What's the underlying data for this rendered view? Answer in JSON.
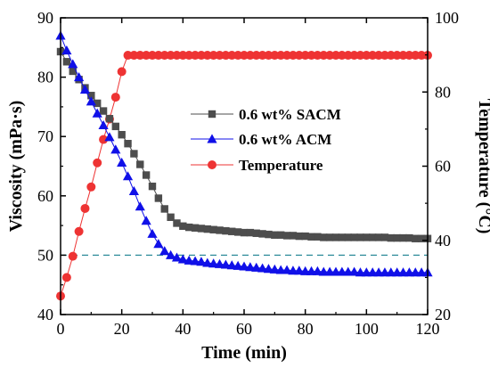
{
  "chart_data": {
    "type": "line",
    "xlabel": "Time (min)",
    "ylabel_left": "Viscosity (mPa·s)",
    "ylabel_right": "Temperature (°C)",
    "xlim": [
      0,
      120
    ],
    "ylim_left": [
      40,
      90
    ],
    "ylim_right": [
      20,
      100
    ],
    "x_ticks": [
      "0",
      "20",
      "40",
      "60",
      "80",
      "100",
      "120"
    ],
    "y_left_ticks": [
      "40",
      "50",
      "60",
      "70",
      "80",
      "90"
    ],
    "y_right_ticks": [
      "20",
      "40",
      "60",
      "80",
      "100"
    ],
    "legend_position": "center-right",
    "grid": false,
    "reference_line": {
      "axis": "left",
      "value": 50,
      "style": "dashed",
      "color": "#2e8b99"
    },
    "series": [
      {
        "name": "0.6 wt% SACM",
        "axis": "left",
        "marker": "square",
        "color": "#4d4d4d",
        "x": [
          0,
          2,
          4,
          6,
          8,
          10,
          12,
          14,
          16,
          18,
          20,
          22,
          24,
          26,
          28,
          30,
          32,
          34,
          36,
          38,
          40,
          42,
          44,
          46,
          48,
          50,
          52,
          54,
          56,
          58,
          60,
          62,
          64,
          66,
          68,
          70,
          72,
          74,
          76,
          78,
          80,
          82,
          84,
          86,
          88,
          90,
          92,
          94,
          96,
          98,
          100,
          102,
          104,
          106,
          108,
          110,
          112,
          114,
          116,
          118,
          120
        ],
        "values": [
          84.3,
          82.6,
          81.0,
          79.6,
          78.2,
          76.9,
          75.6,
          74.3,
          73.0,
          71.7,
          70.3,
          68.8,
          67.1,
          65.3,
          63.5,
          61.6,
          59.6,
          57.8,
          56.4,
          55.4,
          54.9,
          54.7,
          54.6,
          54.5,
          54.4,
          54.3,
          54.2,
          54.1,
          54.0,
          53.9,
          53.8,
          53.8,
          53.7,
          53.6,
          53.5,
          53.4,
          53.4,
          53.3,
          53.3,
          53.2,
          53.2,
          53.1,
          53.1,
          53.0,
          53.0,
          53.0,
          53.0,
          53.0,
          53.0,
          53.0,
          53.0,
          53.0,
          53.0,
          53.0,
          52.9,
          52.9,
          52.9,
          52.9,
          52.8,
          52.8,
          52.8
        ]
      },
      {
        "name": "0.6 wt% ACM",
        "axis": "left",
        "marker": "triangle",
        "color": "#1010e8",
        "x": [
          0,
          2,
          4,
          6,
          8,
          10,
          12,
          14,
          16,
          18,
          20,
          22,
          24,
          26,
          28,
          30,
          32,
          34,
          36,
          38,
          40,
          42,
          44,
          46,
          48,
          50,
          52,
          54,
          56,
          58,
          60,
          62,
          64,
          66,
          68,
          70,
          72,
          74,
          76,
          78,
          80,
          82,
          84,
          86,
          88,
          90,
          92,
          94,
          96,
          98,
          100,
          102,
          104,
          106,
          108,
          110,
          112,
          114,
          116,
          118,
          120
        ],
        "values": [
          87.0,
          84.5,
          82.2,
          80.0,
          77.9,
          75.9,
          73.9,
          71.9,
          69.9,
          67.8,
          65.6,
          63.3,
          60.8,
          58.2,
          55.8,
          53.6,
          51.9,
          50.7,
          50.0,
          49.6,
          49.3,
          49.1,
          49.0,
          48.9,
          48.7,
          48.6,
          48.5,
          48.4,
          48.3,
          48.2,
          48.1,
          48.0,
          47.9,
          47.8,
          47.7,
          47.6,
          47.5,
          47.5,
          47.4,
          47.4,
          47.3,
          47.3,
          47.3,
          47.2,
          47.2,
          47.2,
          47.2,
          47.2,
          47.2,
          47.1,
          47.1,
          47.1,
          47.1,
          47.1,
          47.1,
          47.1,
          47.1,
          47.1,
          47.1,
          47.1,
          47.1
        ]
      },
      {
        "name": "Temperature",
        "axis": "right",
        "marker": "circle",
        "color": "#ee3333",
        "x": [
          0,
          2,
          4,
          6,
          8,
          10,
          12,
          14,
          16,
          18,
          20,
          22,
          24,
          26,
          28,
          30,
          32,
          34,
          36,
          38,
          40,
          42,
          44,
          46,
          48,
          50,
          52,
          54,
          56,
          58,
          60,
          62,
          64,
          66,
          68,
          70,
          72,
          74,
          76,
          78,
          80,
          82,
          84,
          86,
          88,
          90,
          92,
          94,
          96,
          98,
          100,
          102,
          104,
          106,
          108,
          110,
          112,
          114,
          116,
          118,
          120
        ],
        "values": [
          25.0,
          30.0,
          35.7,
          42.4,
          48.6,
          54.4,
          60.9,
          67.2,
          72.7,
          78.6,
          85.5,
          89.9,
          89.9,
          89.9,
          89.9,
          89.9,
          89.9,
          89.9,
          89.9,
          89.9,
          89.9,
          89.9,
          89.9,
          89.9,
          89.9,
          89.9,
          89.9,
          89.9,
          89.9,
          89.9,
          89.9,
          89.9,
          89.9,
          89.9,
          89.9,
          89.9,
          89.9,
          89.9,
          89.9,
          89.9,
          89.9,
          89.9,
          89.9,
          89.9,
          89.9,
          89.9,
          89.9,
          89.9,
          89.9,
          89.9,
          89.9,
          89.9,
          89.9,
          89.9,
          89.9,
          89.9,
          89.9,
          89.9,
          89.9,
          89.9,
          89.9
        ]
      }
    ]
  }
}
